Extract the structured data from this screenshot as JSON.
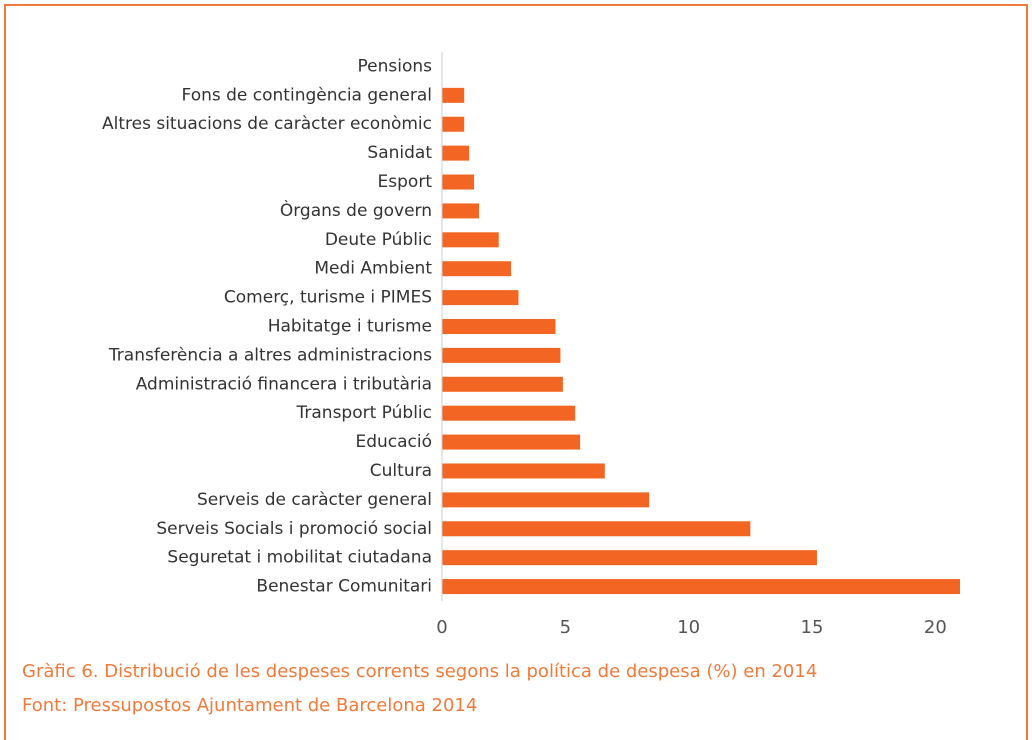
{
  "chart_data": {
    "type": "hbar",
    "title": "Gràfic 6. Distribució de les despeses corrents segons la política de despesa (%) en 2014",
    "source": "Font: Pressupostos Ajuntament de Barcelona 2014",
    "categories": [
      "Pensions",
      "Fons de contingència general",
      "Altres situacions de caràcter econòmic",
      "Sanidat",
      "Esport",
      "Òrgans de govern",
      "Deute Públic",
      "Medi Ambient",
      "Comerç, turisme i PIMES",
      "Habitatge i turisme",
      "Transferència a altres administracions",
      "Administració financera i tributària",
      "Transport Públic",
      "Educació",
      "Cultura",
      "Serveis de caràcter general",
      "Serveis Socials i promoció social",
      "Seguretat i mobilitat ciutadana",
      "Benestar Comunitari"
    ],
    "values": [
      0,
      0.9,
      0.9,
      1.1,
      1.3,
      1.5,
      2.3,
      2.8,
      3.1,
      4.6,
      4.8,
      4.9,
      5.4,
      5.6,
      6.6,
      8.4,
      12.5,
      15.2,
      21.0
    ],
    "color": "#f26522",
    "xlim": [
      0,
      21
    ],
    "xticks": [
      0,
      5,
      10,
      15,
      20
    ],
    "grid": false
  }
}
